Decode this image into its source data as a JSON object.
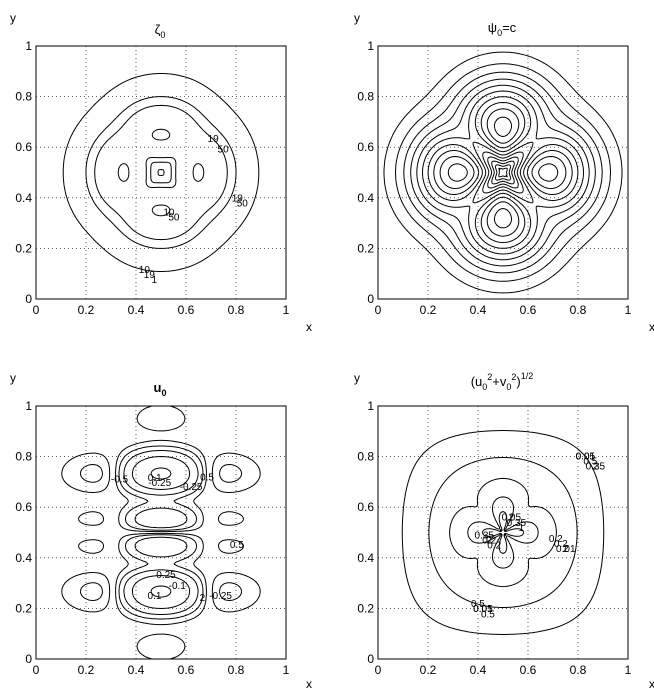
{
  "chart_data": [
    {
      "type": "contour",
      "title": "ζ0",
      "xlabel": "x",
      "ylabel": "y",
      "xlim": [
        0,
        1
      ],
      "ylim": [
        0,
        1
      ],
      "xticks": [
        "0",
        "0.2",
        "0.4",
        "0.6",
        "0.8",
        "1"
      ],
      "yticks": [
        "0",
        "0.2",
        "0.4",
        "0.6",
        "0.8",
        "1"
      ],
      "grid": true,
      "field": "zeta",
      "levels": [
        1,
        10,
        19,
        50
      ],
      "contour_labels": [
        "10",
        "19",
        "50",
        "10",
        "19",
        "50",
        "19",
        "50",
        "1"
      ]
    },
    {
      "type": "contour",
      "title": "ψ0=c",
      "xlabel": "x",
      "ylabel": "y",
      "xlim": [
        0,
        1
      ],
      "ylim": [
        0,
        1
      ],
      "xticks": [
        "0",
        "0.2",
        "0.4",
        "0.6",
        "0.8",
        "1"
      ],
      "yticks": [
        "0",
        "0.2",
        "0.4",
        "0.6",
        "0.8",
        "1"
      ],
      "grid": true,
      "field": "psi",
      "levels": [
        1,
        3,
        6,
        10,
        15,
        21,
        28,
        36,
        45,
        55
      ]
    },
    {
      "type": "contour",
      "title": "u0",
      "xlabel": "x",
      "ylabel": "y",
      "xlim": [
        0,
        1
      ],
      "ylim": [
        0,
        1
      ],
      "xticks": [
        "0",
        "0.2",
        "0.4",
        "0.6",
        "0.8",
        "1"
      ],
      "yticks": [
        "0",
        "0.2",
        "0.4",
        "0.6",
        "0.8",
        "1"
      ],
      "grid": true,
      "field": "u",
      "levels": [
        -2,
        -1,
        -0.5,
        -0.25,
        -0.1,
        0.1,
        0.25,
        0.5,
        1,
        2
      ],
      "contour_labels": [
        "0.1",
        "-0.25",
        "0.5",
        "-0.25",
        "0.5",
        "-0.5",
        "2",
        "0.25",
        "-0.1",
        "0.1",
        "-0.25"
      ]
    },
    {
      "type": "contour",
      "title": "(u0²+v0²)^1/2",
      "xlabel": "x",
      "ylabel": "y",
      "xlim": [
        0,
        1
      ],
      "ylim": [
        0,
        1
      ],
      "xticks": [
        "0",
        "0.2",
        "0.4",
        "0.6",
        "0.8",
        "1"
      ],
      "yticks": [
        "0",
        "0.2",
        "0.4",
        "0.6",
        "0.8",
        "1"
      ],
      "grid": true,
      "field": "speed",
      "levels": [
        0.01,
        0.05,
        0.2,
        0.35,
        0.5,
        1,
        2
      ],
      "contour_labels": [
        "0.01",
        "0.05",
        "0.01",
        "0.05",
        "0.2",
        "0.35",
        "0.5",
        "0.2",
        "1",
        "0.35",
        "0.5",
        "0.5",
        "0.2",
        "0.35",
        "0.2",
        "0.05",
        "0.01",
        "2",
        "2",
        "2",
        "2"
      ]
    }
  ]
}
